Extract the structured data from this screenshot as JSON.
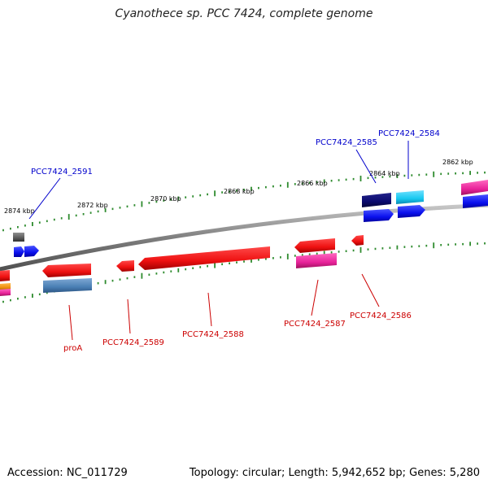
{
  "title": "Cyanothece sp. PCC 7424, complete genome",
  "footer": {
    "accession_text": "Accession: NC_011729",
    "summary_text": "Topology: circular; Length: 5,942,652 bp; Genes: 5,280"
  },
  "colors": {
    "backbone": "#7f7f7f",
    "ticks": "#2e8b2e",
    "label_top": "#0000cc",
    "label_bottom": "#cc0000",
    "red": "#ee1111",
    "blue": "#0a10ee",
    "navy": "#0a0a6e",
    "cyan": "#18c8f0",
    "magenta": "#e8229a",
    "steel": "#4a7fb4",
    "gray": "#5a5a5a",
    "orange": "#f09010"
  },
  "scale_labels": [
    "2874 kbp",
    "2872 kbp",
    "2870 kbp",
    "2868 kbp",
    "2866 kbp",
    "2864 kbp",
    "2862 kbp"
  ],
  "gene_labels": {
    "pcc2591": "PCC7424_2591",
    "pcc2585": "PCC7424_2585",
    "pcc2584": "PCC7424_2584",
    "proA": "proA",
    "pcc2589": "PCC7424_2589",
    "pcc2588": "PCC7424_2588",
    "pcc2587": "PCC7424_2587",
    "pcc2586": "PCC7424_2586"
  }
}
